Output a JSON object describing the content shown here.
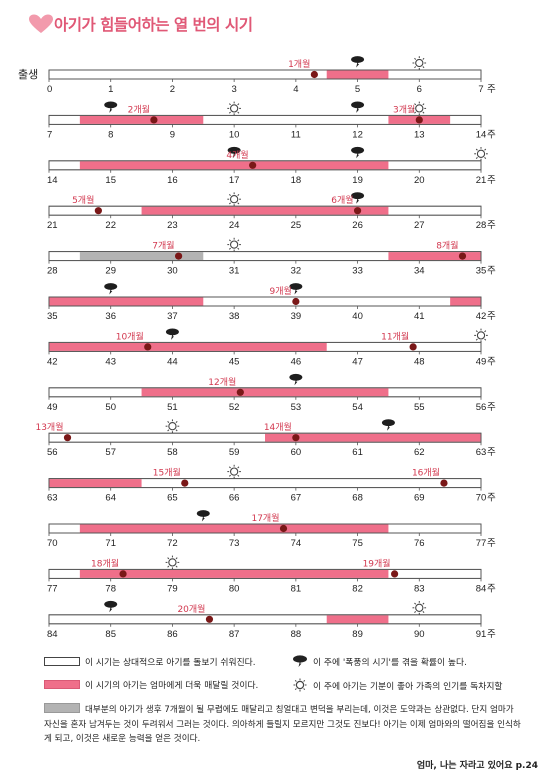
{
  "page": {
    "title": "아기가 힘들어하는 열 번의 시기",
    "birth_label": "출생",
    "week_suffix": "주",
    "source": "엄마, 나는 자라고 있어요 p.24"
  },
  "colors": {
    "title": "#e05876",
    "pink": "#ef6f8a",
    "gray": "#b3b3b3",
    "dot": "#7a1818",
    "label": "#d2384f"
  },
  "chart_data": {
    "type": "timeline",
    "unit": "week",
    "rows": [
      {
        "start": 0,
        "segments": [
          {
            "from": 4.5,
            "to": 5.5,
            "kind": "pink"
          }
        ],
        "months": [
          {
            "label": "1개월",
            "week": 4.3
          }
        ],
        "storms": [
          5
        ],
        "suns": [
          6
        ]
      },
      {
        "start": 7,
        "segments": [
          {
            "from": 7.5,
            "to": 9.5,
            "kind": "pink"
          },
          {
            "from": 12.5,
            "to": 13.5,
            "kind": "pink"
          }
        ],
        "months": [
          {
            "label": "2개월",
            "week": 8.7
          },
          {
            "label": "3개월",
            "week": 13
          }
        ],
        "storms": [
          8,
          12
        ],
        "suns": [
          10,
          13
        ]
      },
      {
        "start": 14,
        "segments": [
          {
            "from": 14.5,
            "to": 19.5,
            "kind": "pink"
          }
        ],
        "months": [
          {
            "label": "4개월",
            "week": 17.3
          }
        ],
        "storms": [
          17,
          19
        ],
        "suns": [
          21
        ]
      },
      {
        "start": 21,
        "segments": [
          {
            "from": 22.5,
            "to": 26.5,
            "kind": "pink"
          }
        ],
        "months": [
          {
            "label": "5개월",
            "week": 21.8
          },
          {
            "label": "6개월",
            "week": 26
          }
        ],
        "storms": [
          26
        ],
        "suns": [
          24
        ]
      },
      {
        "start": 28,
        "segments": [
          {
            "from": 28.5,
            "to": 30.5,
            "kind": "gray"
          },
          {
            "from": 33.5,
            "to": 35,
            "kind": "pink"
          }
        ],
        "months": [
          {
            "label": "7개월",
            "week": 30.1
          },
          {
            "label": "8개월",
            "week": 34.7
          }
        ],
        "storms": [],
        "suns": [
          31
        ]
      },
      {
        "start": 35,
        "segments": [
          {
            "from": 35,
            "to": 37.5,
            "kind": "pink"
          },
          {
            "from": 41.5,
            "to": 42,
            "kind": "pink"
          }
        ],
        "months": [
          {
            "label": "9개월",
            "week": 39
          }
        ],
        "storms": [
          36,
          39
        ],
        "suns": []
      },
      {
        "start": 42,
        "segments": [
          {
            "from": 42,
            "to": 46.5,
            "kind": "pink"
          }
        ],
        "months": [
          {
            "label": "10개월",
            "week": 43.6
          },
          {
            "label": "11개월",
            "week": 47.9
          }
        ],
        "storms": [
          44
        ],
        "suns": [
          49
        ]
      },
      {
        "start": 49,
        "segments": [
          {
            "from": 50.5,
            "to": 54.5,
            "kind": "pink"
          }
        ],
        "months": [
          {
            "label": "12개월",
            "week": 52.1
          }
        ],
        "storms": [
          53
        ],
        "suns": []
      },
      {
        "start": 56,
        "segments": [
          {
            "from": 59.5,
            "to": 63,
            "kind": "pink"
          }
        ],
        "months": [
          {
            "label": "13개월",
            "week": 56.3
          },
          {
            "label": "14개월",
            "week": 60
          }
        ],
        "storms": [
          61.5
        ],
        "suns": [
          58
        ]
      },
      {
        "start": 63,
        "segments": [
          {
            "from": 63,
            "to": 64.5,
            "kind": "pink"
          }
        ],
        "months": [
          {
            "label": "15개월",
            "week": 65.2
          },
          {
            "label": "16개월",
            "week": 69.4
          }
        ],
        "storms": [],
        "suns": [
          66
        ]
      },
      {
        "start": 70,
        "segments": [
          {
            "from": 70.5,
            "to": 75.5,
            "kind": "pink"
          }
        ],
        "months": [
          {
            "label": "17개월",
            "week": 73.8
          }
        ],
        "storms": [
          72.5
        ],
        "suns": []
      },
      {
        "start": 77,
        "segments": [
          {
            "from": 77.5,
            "to": 82.5,
            "kind": "pink"
          }
        ],
        "months": [
          {
            "label": "18개월",
            "week": 78.2
          },
          {
            "label": "19개월",
            "week": 82.6
          }
        ],
        "storms": [],
        "suns": [
          79
        ]
      },
      {
        "start": 84,
        "segments": [
          {
            "from": 88.5,
            "to": 89.5,
            "kind": "pink"
          }
        ],
        "months": [
          {
            "label": "20개월",
            "week": 86.6
          }
        ],
        "storms": [
          85
        ],
        "suns": [
          90
        ]
      }
    ]
  },
  "legend": {
    "white": "이 시기는 상대적으로 아기를 돌보기 쉬워진다.",
    "pink": "이 시기의 아기는 엄마에게 더욱 매달릴 것이다.",
    "storm": "이 주에 '폭풍의 시기'를 겪을 확률이 높다.",
    "sun": "이 주에 아기는 기분이 좋아 가족의 인기를 독차지할",
    "gray": "대부분의 아기가 생후 7개월이 될 무렵에도 매달리고 칭얼대고 변덕을 부리는데, 이것은 도약과는 상관없다. 단지 엄마가 자신을 혼자 남겨두는 것이 두려워서 그러는 것이다. 의아하게 들릴지 모르지만 그것도 진보다! 아기는 이제 엄마와의 떨어짐을 인식하게 되고, 이것은 새로운 능력을 얻은 것이다."
  }
}
